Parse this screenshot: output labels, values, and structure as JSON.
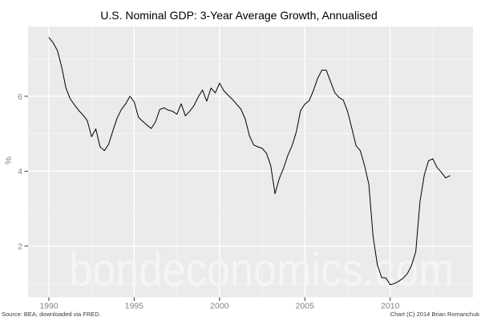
{
  "title": "U.S. Nominal GDP: 3-Year Average Growth, Annualised",
  "watermark": {
    "text": "bondeconomics.com"
  },
  "footer": {
    "source_note": "Source: BEA; downloaded via FRED.",
    "copyright_note": "Chart (C) 2014 Brian Romanchuk"
  },
  "y_axis": {
    "label": "%",
    "tick_labels": [
      "2",
      "4",
      "6"
    ]
  },
  "x_axis": {
    "tick_labels": [
      "1990",
      "1995",
      "2000",
      "2005",
      "2010"
    ]
  },
  "colors": {
    "background": "#ffffff",
    "panel": "#ebebeb",
    "grid_major": "#ffffff",
    "grid_minor": "#ffffff",
    "line": "#000000",
    "axis_text": "#848484",
    "tick_mark": "#333333",
    "watermark": "#f5f5f5",
    "title_text": "#000000",
    "footnote_text": "#3a3a3a"
  },
  "chart_data": {
    "type": "line",
    "title": "U.S. Nominal GDP: 3-Year Average Growth, Annualised",
    "xlabel": "",
    "ylabel": "%",
    "x_ticks": [
      1990,
      1995,
      2000,
      2005,
      2010
    ],
    "y_ticks": [
      2,
      4,
      6
    ],
    "xlim": [
      1988.78,
      2014.85
    ],
    "ylim": [
      0.63,
      7.87
    ],
    "grid": "gray panel, white major gridlines (ticks), faint white minor gridlines at odd % values and 2.5-year midpoints",
    "legend": "none",
    "series": [
      {
        "name": "U.S. nominal GDP 3-year average growth, annualised (%)",
        "x_start": 1990.0,
        "x_step_years": 0.25,
        "x_end": 2013.5,
        "values": [
          7.57,
          7.43,
          7.22,
          6.78,
          6.22,
          5.93,
          5.77,
          5.62,
          5.5,
          5.35,
          4.92,
          5.13,
          4.65,
          4.55,
          4.72,
          5.08,
          5.42,
          5.65,
          5.8,
          6.0,
          5.85,
          5.44,
          5.33,
          5.23,
          5.14,
          5.32,
          5.65,
          5.69,
          5.63,
          5.6,
          5.52,
          5.8,
          5.48,
          5.6,
          5.75,
          5.98,
          6.17,
          5.87,
          6.22,
          6.09,
          6.35,
          6.15,
          6.03,
          5.92,
          5.79,
          5.66,
          5.4,
          4.95,
          4.7,
          4.65,
          4.61,
          4.48,
          4.15,
          3.4,
          3.8,
          4.08,
          4.42,
          4.68,
          5.05,
          5.62,
          5.79,
          5.88,
          6.15,
          6.48,
          6.7,
          6.7,
          6.4,
          6.1,
          5.97,
          5.9,
          5.6,
          5.15,
          4.68,
          4.55,
          4.15,
          3.65,
          2.25,
          1.5,
          1.16,
          1.15,
          0.97,
          1.0,
          1.06,
          1.14,
          1.26,
          1.48,
          1.85,
          3.2,
          3.9,
          4.28,
          4.33,
          4.1,
          3.97,
          3.82,
          3.88
        ]
      }
    ]
  }
}
